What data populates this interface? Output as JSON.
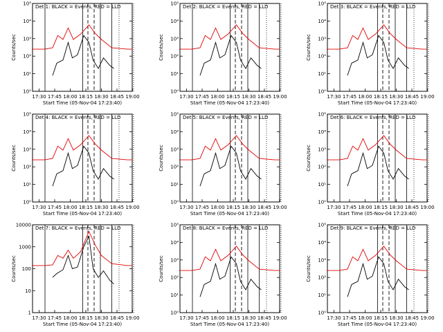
{
  "colors": {
    "events": "#000000",
    "lld": "#e00000",
    "frame": "#000000",
    "background": "#ffffff"
  },
  "common": {
    "x_tick_labels": [
      "17:30",
      "17:45",
      "18:00",
      "18:15",
      "18:30",
      "18:45",
      "19:00"
    ],
    "xlabel": "Start Time (05-Nov-04 17:23:40)",
    "ylabel": "Counts/sec"
  },
  "chart_data": [
    {
      "type": "line",
      "title": "Det 1: BLACK = Events, RED = LLD",
      "xlabel": "Start Time (05-Nov-04 17:23:40)",
      "ylabel": "Counts/sec",
      "yscale": "log",
      "ylim": [
        1,
        100000
      ],
      "ytick_labels": [
        "10⁰",
        "10¹",
        "10²",
        "10³",
        "10⁴",
        "10⁵"
      ],
      "x_range_minutes_after_start": [
        0,
        96
      ],
      "vertical_lines_solid": [
        "17:35:40",
        "18:12:00",
        "18:29:00",
        "18:40:00"
      ],
      "vertical_lines_dashed": [
        "18:17:00",
        "18:23:00"
      ],
      "vertical_lines_dotted": [
        "18:47:00",
        "19:01:00"
      ],
      "series": [
        {
          "name": "BLACK = Events",
          "x": [
            "17:43",
            "17:47",
            "17:53",
            "17:58",
            "18:02",
            "18:07",
            "18:13",
            "18:18",
            "18:22",
            "18:27",
            "18:32",
            "18:38",
            "18:42"
          ],
          "y": [
            8,
            40,
            60,
            600,
            80,
            120,
            1500,
            600,
            60,
            20,
            80,
            30,
            20
          ]
        },
        {
          "name": "RED = LLD",
          "x": [
            "17:23",
            "17:35",
            "17:43",
            "17:48",
            "17:53",
            "17:58",
            "18:03",
            "18:10",
            "18:18",
            "18:24",
            "18:30",
            "18:40",
            "18:55",
            "19:00"
          ],
          "y": [
            250,
            250,
            300,
            1500,
            900,
            4000,
            900,
            1800,
            6000,
            2000,
            900,
            300,
            250,
            250
          ]
        }
      ]
    },
    {
      "type": "line",
      "title": "Det 2: BLACK = Events, RED = LLD",
      "xlabel": "Start Time (05-Nov-04 17:23:40)",
      "ylabel": "Counts/sec",
      "yscale": "log",
      "ylim": [
        1,
        100000
      ],
      "ytick_labels": [
        "10⁰",
        "10¹",
        "10²",
        "10³",
        "10⁴",
        "10⁵"
      ],
      "x_range_minutes_after_start": [
        0,
        96
      ],
      "vertical_lines_solid": [
        "17:35:40",
        "18:12:00",
        "18:29:00",
        "18:40:00"
      ],
      "vertical_lines_dashed": [
        "18:17:00",
        "18:23:00"
      ],
      "vertical_lines_dotted": [
        "18:47:00",
        "19:01:00"
      ],
      "series": [
        {
          "name": "BLACK = Events",
          "x": [
            "17:43",
            "17:47",
            "17:53",
            "17:58",
            "18:02",
            "18:07",
            "18:13",
            "18:18",
            "18:22",
            "18:27",
            "18:32",
            "18:38",
            "18:42"
          ],
          "y": [
            8,
            40,
            60,
            600,
            80,
            120,
            1500,
            600,
            60,
            20,
            80,
            30,
            20
          ]
        },
        {
          "name": "RED = LLD",
          "x": [
            "17:23",
            "17:35",
            "17:43",
            "17:48",
            "17:53",
            "17:58",
            "18:03",
            "18:10",
            "18:18",
            "18:24",
            "18:30",
            "18:40",
            "18:55",
            "19:00"
          ],
          "y": [
            250,
            250,
            300,
            1500,
            900,
            4000,
            900,
            1800,
            6000,
            2000,
            900,
            300,
            250,
            250
          ]
        }
      ]
    },
    {
      "type": "line",
      "title": "Det 3: BLACK = Events, RED = LLD",
      "xlabel": "Start Time (05-Nov-04 17:23:40)",
      "ylabel": "Counts/sec",
      "yscale": "log",
      "ylim": [
        1,
        100000
      ],
      "ytick_labels": [
        "10⁰",
        "10¹",
        "10²",
        "10³",
        "10⁴",
        "10⁵"
      ],
      "x_range_minutes_after_start": [
        0,
        96
      ],
      "vertical_lines_solid": [
        "17:35:40",
        "18:12:00",
        "18:29:00",
        "18:40:00"
      ],
      "vertical_lines_dashed": [
        "18:17:00",
        "18:23:00"
      ],
      "vertical_lines_dotted": [
        "18:47:00",
        "19:01:00"
      ],
      "series": [
        {
          "name": "BLACK = Events",
          "x": [
            "17:43",
            "17:47",
            "17:53",
            "17:58",
            "18:02",
            "18:07",
            "18:13",
            "18:18",
            "18:22",
            "18:27",
            "18:32",
            "18:38",
            "18:42"
          ],
          "y": [
            8,
            40,
            60,
            600,
            80,
            120,
            1500,
            600,
            60,
            20,
            80,
            30,
            20
          ]
        },
        {
          "name": "RED = LLD",
          "x": [
            "17:23",
            "17:35",
            "17:43",
            "17:48",
            "17:53",
            "17:58",
            "18:03",
            "18:10",
            "18:18",
            "18:24",
            "18:30",
            "18:40",
            "18:55",
            "19:00"
          ],
          "y": [
            250,
            250,
            300,
            1500,
            900,
            4000,
            900,
            1800,
            6000,
            2000,
            900,
            300,
            250,
            250
          ]
        }
      ]
    },
    {
      "type": "line",
      "title": "Det 4: BLACK = Events, RED = LLD",
      "xlabel": "Start Time (05-Nov-04 17:23:40)",
      "ylabel": "Counts/sec",
      "yscale": "log",
      "ylim": [
        1,
        100000
      ],
      "ytick_labels": [
        "10⁰",
        "10¹",
        "10²",
        "10³",
        "10⁴",
        "10⁵"
      ],
      "x_range_minutes_after_start": [
        0,
        96
      ],
      "vertical_lines_solid": [
        "17:35:40",
        "18:12:00",
        "18:29:00",
        "18:40:00"
      ],
      "vertical_lines_dashed": [
        "18:17:00",
        "18:23:00"
      ],
      "vertical_lines_dotted": [
        "18:47:00",
        "19:01:00"
      ],
      "series": [
        {
          "name": "BLACK = Events",
          "x": [
            "17:43",
            "17:47",
            "17:53",
            "17:58",
            "18:02",
            "18:07",
            "18:13",
            "18:18",
            "18:22",
            "18:27",
            "18:32",
            "18:38",
            "18:42"
          ],
          "y": [
            8,
            40,
            60,
            600,
            80,
            120,
            1500,
            600,
            60,
            20,
            80,
            30,
            20
          ]
        },
        {
          "name": "RED = LLD",
          "x": [
            "17:23",
            "17:35",
            "17:43",
            "17:48",
            "17:53",
            "17:58",
            "18:03",
            "18:10",
            "18:18",
            "18:24",
            "18:30",
            "18:40",
            "18:55",
            "19:00"
          ],
          "y": [
            250,
            250,
            300,
            1500,
            900,
            4000,
            900,
            1800,
            6000,
            2000,
            900,
            300,
            250,
            250
          ]
        }
      ]
    },
    {
      "type": "line",
      "title": "Det 5: BLACK = Events, RED = LLD",
      "xlabel": "Start Time (05-Nov-04 17:23:40)",
      "ylabel": "Counts/sec",
      "yscale": "log",
      "ylim": [
        1,
        100000
      ],
      "ytick_labels": [
        "10⁰",
        "10¹",
        "10²",
        "10³",
        "10⁴",
        "10⁵"
      ],
      "x_range_minutes_after_start": [
        0,
        96
      ],
      "vertical_lines_solid": [
        "17:35:40",
        "18:12:00",
        "18:29:00",
        "18:40:00"
      ],
      "vertical_lines_dashed": [
        "18:17:00",
        "18:23:00"
      ],
      "vertical_lines_dotted": [
        "18:47:00",
        "19:01:00"
      ],
      "series": [
        {
          "name": "BLACK = Events",
          "x": [
            "17:43",
            "17:47",
            "17:53",
            "17:58",
            "18:02",
            "18:07",
            "18:13",
            "18:18",
            "18:22",
            "18:27",
            "18:32",
            "18:38",
            "18:42"
          ],
          "y": [
            8,
            40,
            60,
            600,
            80,
            120,
            1500,
            600,
            60,
            20,
            80,
            30,
            20
          ]
        },
        {
          "name": "RED = LLD",
          "x": [
            "17:23",
            "17:35",
            "17:43",
            "17:48",
            "17:53",
            "17:58",
            "18:03",
            "18:10",
            "18:18",
            "18:24",
            "18:30",
            "18:40",
            "18:55",
            "19:00"
          ],
          "y": [
            250,
            250,
            300,
            1500,
            900,
            4000,
            900,
            1800,
            6000,
            2000,
            900,
            300,
            250,
            250
          ]
        }
      ]
    },
    {
      "type": "line",
      "title": "Det 6: BLACK = Events, RED = LLD",
      "xlabel": "Start Time (05-Nov-04 17:23:40)",
      "ylabel": "Counts/sec",
      "yscale": "log",
      "ylim": [
        1,
        100000
      ],
      "ytick_labels": [
        "10⁰",
        "10¹",
        "10²",
        "10³",
        "10⁴",
        "10⁵"
      ],
      "x_range_minutes_after_start": [
        0,
        96
      ],
      "vertical_lines_solid": [
        "17:35:40",
        "18:12:00",
        "18:29:00",
        "18:40:00"
      ],
      "vertical_lines_dashed": [
        "18:17:00",
        "18:23:00"
      ],
      "vertical_lines_dotted": [
        "18:47:00",
        "19:01:00"
      ],
      "series": [
        {
          "name": "BLACK = Events",
          "x": [
            "17:43",
            "17:47",
            "17:53",
            "17:58",
            "18:02",
            "18:07",
            "18:13",
            "18:18",
            "18:22",
            "18:27",
            "18:32",
            "18:38",
            "18:42"
          ],
          "y": [
            8,
            40,
            60,
            600,
            80,
            120,
            1500,
            600,
            60,
            20,
            80,
            30,
            20
          ]
        },
        {
          "name": "RED = LLD",
          "x": [
            "17:23",
            "17:35",
            "17:43",
            "17:48",
            "17:53",
            "17:58",
            "18:03",
            "18:10",
            "18:18",
            "18:24",
            "18:30",
            "18:40",
            "18:55",
            "19:00"
          ],
          "y": [
            250,
            250,
            300,
            1500,
            900,
            4000,
            900,
            1800,
            6000,
            2000,
            900,
            300,
            250,
            250
          ]
        }
      ]
    },
    {
      "type": "line",
      "title": "Det 7: BLACK = Events, RED = LLD",
      "xlabel": "Start Time (05-Nov-04 17:23:40)",
      "ylabel": "Counts/sec",
      "yscale": "log",
      "ylim": [
        1,
        10000
      ],
      "ytick_labels": [
        "1",
        "10",
        "100",
        "1000",
        "10000"
      ],
      "x_range_minutes_after_start": [
        0,
        96
      ],
      "vertical_lines_solid": [
        "17:35:40",
        "18:12:00",
        "18:29:00",
        "18:40:00"
      ],
      "vertical_lines_dashed": [
        "18:17:00",
        "18:23:00"
      ],
      "vertical_lines_dotted": [
        "18:47:00",
        "19:01:00"
      ],
      "series": [
        {
          "name": "BLACK = Events",
          "x": [
            "17:43",
            "17:47",
            "17:53",
            "17:58",
            "18:02",
            "18:07",
            "18:13",
            "18:18",
            "18:22",
            "18:27",
            "18:32",
            "18:38",
            "18:42"
          ],
          "y": [
            40,
            60,
            90,
            400,
            100,
            120,
            1000,
            3000,
            100,
            40,
            80,
            30,
            20
          ]
        },
        {
          "name": "RED = LLD",
          "x": [
            "17:23",
            "17:35",
            "17:43",
            "17:48",
            "17:53",
            "17:58",
            "18:03",
            "18:10",
            "18:18",
            "18:24",
            "18:30",
            "18:40",
            "18:55",
            "19:00"
          ],
          "y": [
            140,
            140,
            150,
            400,
            300,
            700,
            300,
            600,
            5000,
            1200,
            400,
            170,
            140,
            140
          ]
        }
      ]
    },
    {
      "type": "line",
      "title": "Det 8: BLACK = Events, RED = LLD",
      "xlabel": "Start Time (05-Nov-04 17:23:40)",
      "ylabel": "Counts/sec",
      "yscale": "log",
      "ylim": [
        1,
        100000
      ],
      "ytick_labels": [
        "10⁰",
        "10¹",
        "10²",
        "10³",
        "10⁴",
        "10⁵"
      ],
      "x_range_minutes_after_start": [
        0,
        96
      ],
      "vertical_lines_solid": [
        "17:35:40",
        "18:12:00",
        "18:29:00",
        "18:40:00"
      ],
      "vertical_lines_dashed": [
        "18:17:00",
        "18:23:00"
      ],
      "vertical_lines_dotted": [
        "18:47:00",
        "19:01:00"
      ],
      "series": [
        {
          "name": "BLACK = Events",
          "x": [
            "17:43",
            "17:47",
            "17:53",
            "17:58",
            "18:02",
            "18:07",
            "18:13",
            "18:18",
            "18:22",
            "18:27",
            "18:32",
            "18:38",
            "18:42"
          ],
          "y": [
            8,
            40,
            60,
            600,
            80,
            120,
            1500,
            600,
            60,
            20,
            80,
            30,
            20
          ]
        },
        {
          "name": "RED = LLD",
          "x": [
            "17:23",
            "17:35",
            "17:43",
            "17:48",
            "17:53",
            "17:58",
            "18:03",
            "18:10",
            "18:18",
            "18:24",
            "18:30",
            "18:40",
            "18:55",
            "19:00"
          ],
          "y": [
            250,
            250,
            300,
            1500,
            900,
            4000,
            900,
            1800,
            6000,
            2000,
            900,
            300,
            250,
            250
          ]
        }
      ]
    },
    {
      "type": "line",
      "title": "Det 9: BLACK = Events, RED = LLD",
      "xlabel": "Start Time (05-Nov-04 17:23:40)",
      "ylabel": "Counts/sec",
      "yscale": "log",
      "ylim": [
        1,
        100000
      ],
      "ytick_labels": [
        "10⁰",
        "10¹",
        "10²",
        "10³",
        "10⁴",
        "10⁵"
      ],
      "x_range_minutes_after_start": [
        0,
        96
      ],
      "vertical_lines_solid": [
        "17:35:40",
        "18:12:00",
        "18:29:00",
        "18:40:00"
      ],
      "vertical_lines_dashed": [
        "18:17:00",
        "18:23:00"
      ],
      "vertical_lines_dotted": [
        "18:47:00",
        "19:01:00"
      ],
      "series": [
        {
          "name": "BLACK = Events",
          "x": [
            "17:43",
            "17:47",
            "17:53",
            "17:58",
            "18:02",
            "18:07",
            "18:13",
            "18:18",
            "18:22",
            "18:27",
            "18:32",
            "18:38",
            "18:42"
          ],
          "y": [
            8,
            40,
            60,
            600,
            80,
            120,
            1500,
            600,
            60,
            20,
            80,
            30,
            20
          ]
        },
        {
          "name": "RED = LLD",
          "x": [
            "17:23",
            "17:35",
            "17:43",
            "17:48",
            "17:53",
            "17:58",
            "18:03",
            "18:10",
            "18:18",
            "18:24",
            "18:30",
            "18:40",
            "18:55",
            "19:00"
          ],
          "y": [
            250,
            250,
            300,
            1500,
            900,
            4000,
            900,
            1800,
            6000,
            2000,
            900,
            300,
            250,
            250
          ]
        }
      ]
    }
  ]
}
